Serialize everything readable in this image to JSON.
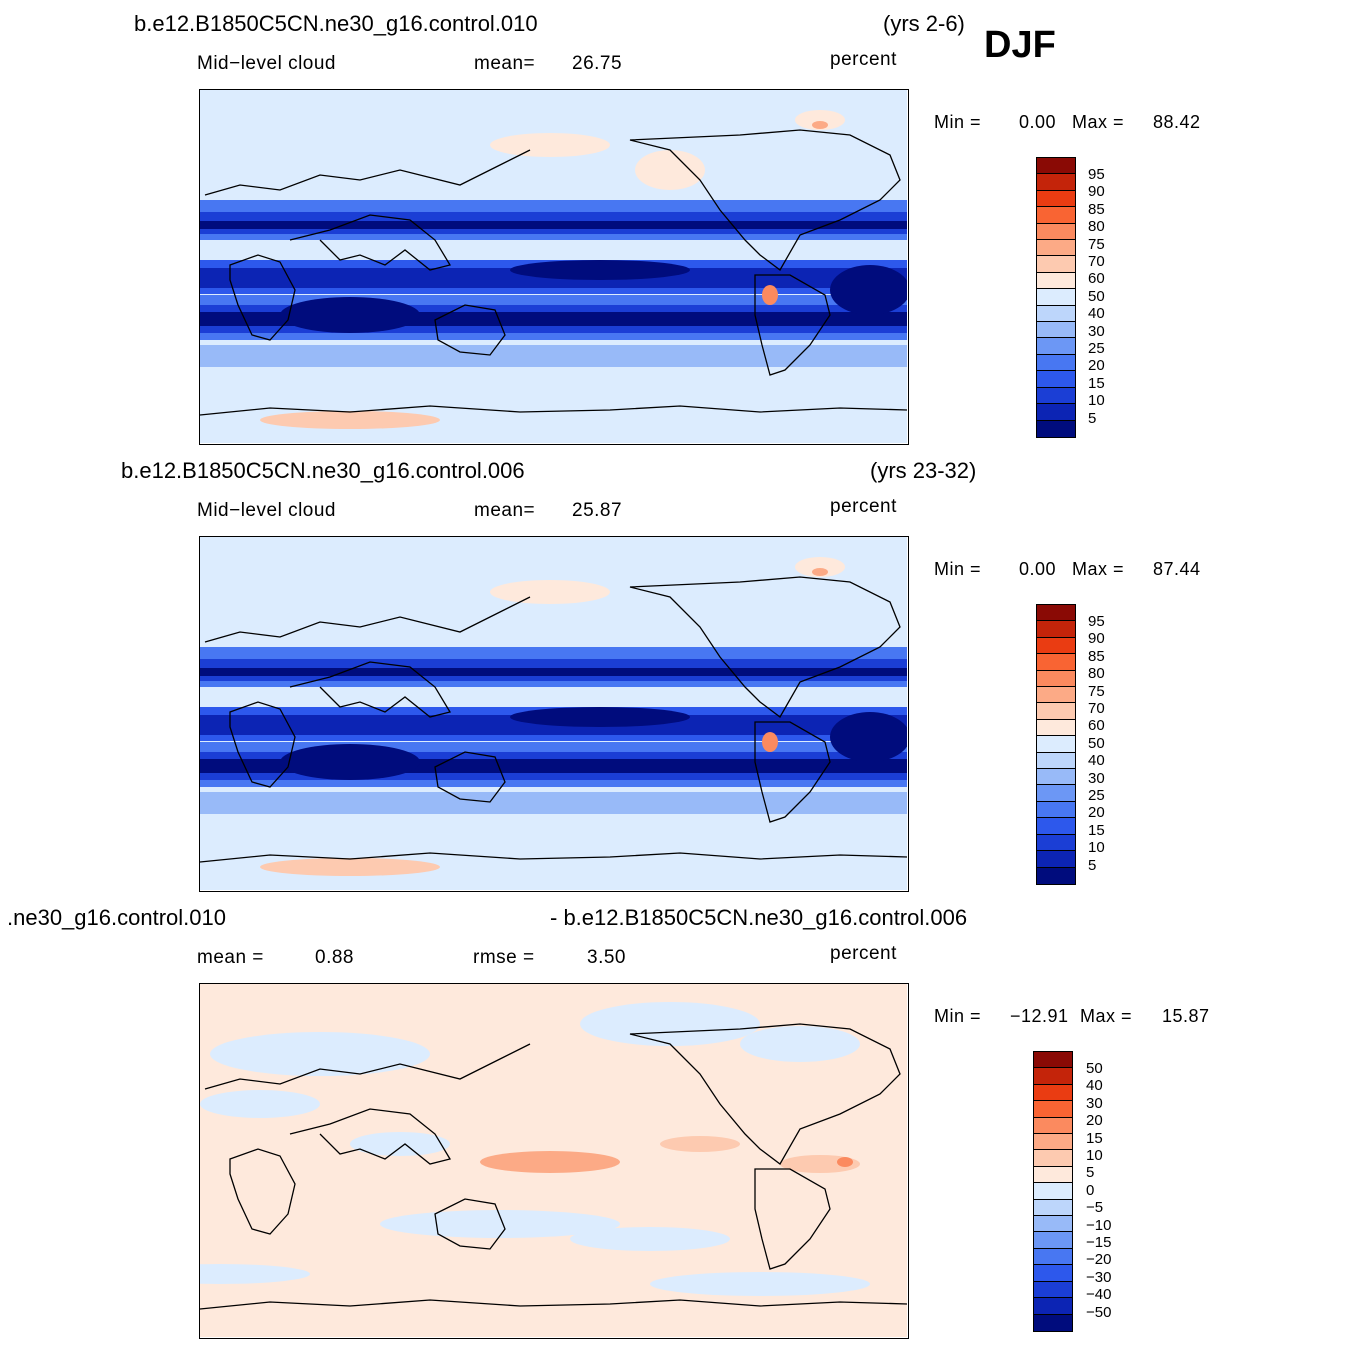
{
  "season": "DJF",
  "colors": {
    "pos_scale": [
      "#000c7d",
      "#0c24b4",
      "#1b3ed5",
      "#2d58ec",
      "#4877f2",
      "#6c97f5",
      "#98baf8",
      "#bdd6fb",
      "#dcecfe",
      "#fee9dc",
      "#fdcab0",
      "#fcaa86",
      "#fb8a5f",
      "#f96433",
      "#ea3c12",
      "#c4240a",
      "#8a0a05"
    ],
    "diff_scale": [
      "#000c7d",
      "#0c24b4",
      "#1b3ed5",
      "#2d58ec",
      "#4877f2",
      "#6c97f5",
      "#98baf8",
      "#bdd6fb",
      "#dcecfe",
      "#fee9dc",
      "#fdcab0",
      "#fcaa86",
      "#fb8a5f",
      "#f96433",
      "#ea3c12",
      "#c4240a",
      "#8a0a05"
    ]
  },
  "panels": [
    {
      "case_title": "b.e12.B1850C5CN.ne30_g16.control.010",
      "years": "(yrs 2-6)",
      "left_label": "Mid−level  cloud",
      "mean_label": "mean=",
      "mean_value": "26.75",
      "units": "percent",
      "min_label": "Min  =",
      "min_value": "0.00",
      "max_label": "Max  =",
      "max_value": "88.42",
      "levels": [
        "95",
        "90",
        "85",
        "80",
        "75",
        "70",
        "60",
        "50",
        "40",
        "30",
        "25",
        "20",
        "15",
        "10",
        "5"
      ]
    },
    {
      "case_title": "b.e12.B1850C5CN.ne30_g16.control.006",
      "years": "(yrs 23-32)",
      "left_label": "Mid−level  cloud",
      "mean_label": "mean=",
      "mean_value": "25.87",
      "units": "percent",
      "min_label": "Min  =",
      "min_value": "0.00",
      "max_label": "Max  =",
      "max_value": "87.44",
      "levels": [
        "95",
        "90",
        "85",
        "80",
        "75",
        "70",
        "60",
        "50",
        "40",
        "30",
        "25",
        "20",
        "15",
        "10",
        "5"
      ]
    },
    {
      "case_title_left": ".ne30_g16.control.010",
      "case_title_right": "- b.e12.B1850C5CN.ne30_g16.control.006",
      "mean_label": "mean  =",
      "mean_value": "0.88",
      "rmse_label": "rmse  =",
      "rmse_value": "3.50",
      "units": "percent",
      "min_label": "Min  =",
      "min_value": "−12.91",
      "max_label": "Max  =",
      "max_value": "15.87",
      "levels": [
        "50",
        "40",
        "30",
        "20",
        "15",
        "10",
        "5",
        "0",
        "−5",
        "−10",
        "−15",
        "−20",
        "−30",
        "−40",
        "−50"
      ]
    }
  ]
}
